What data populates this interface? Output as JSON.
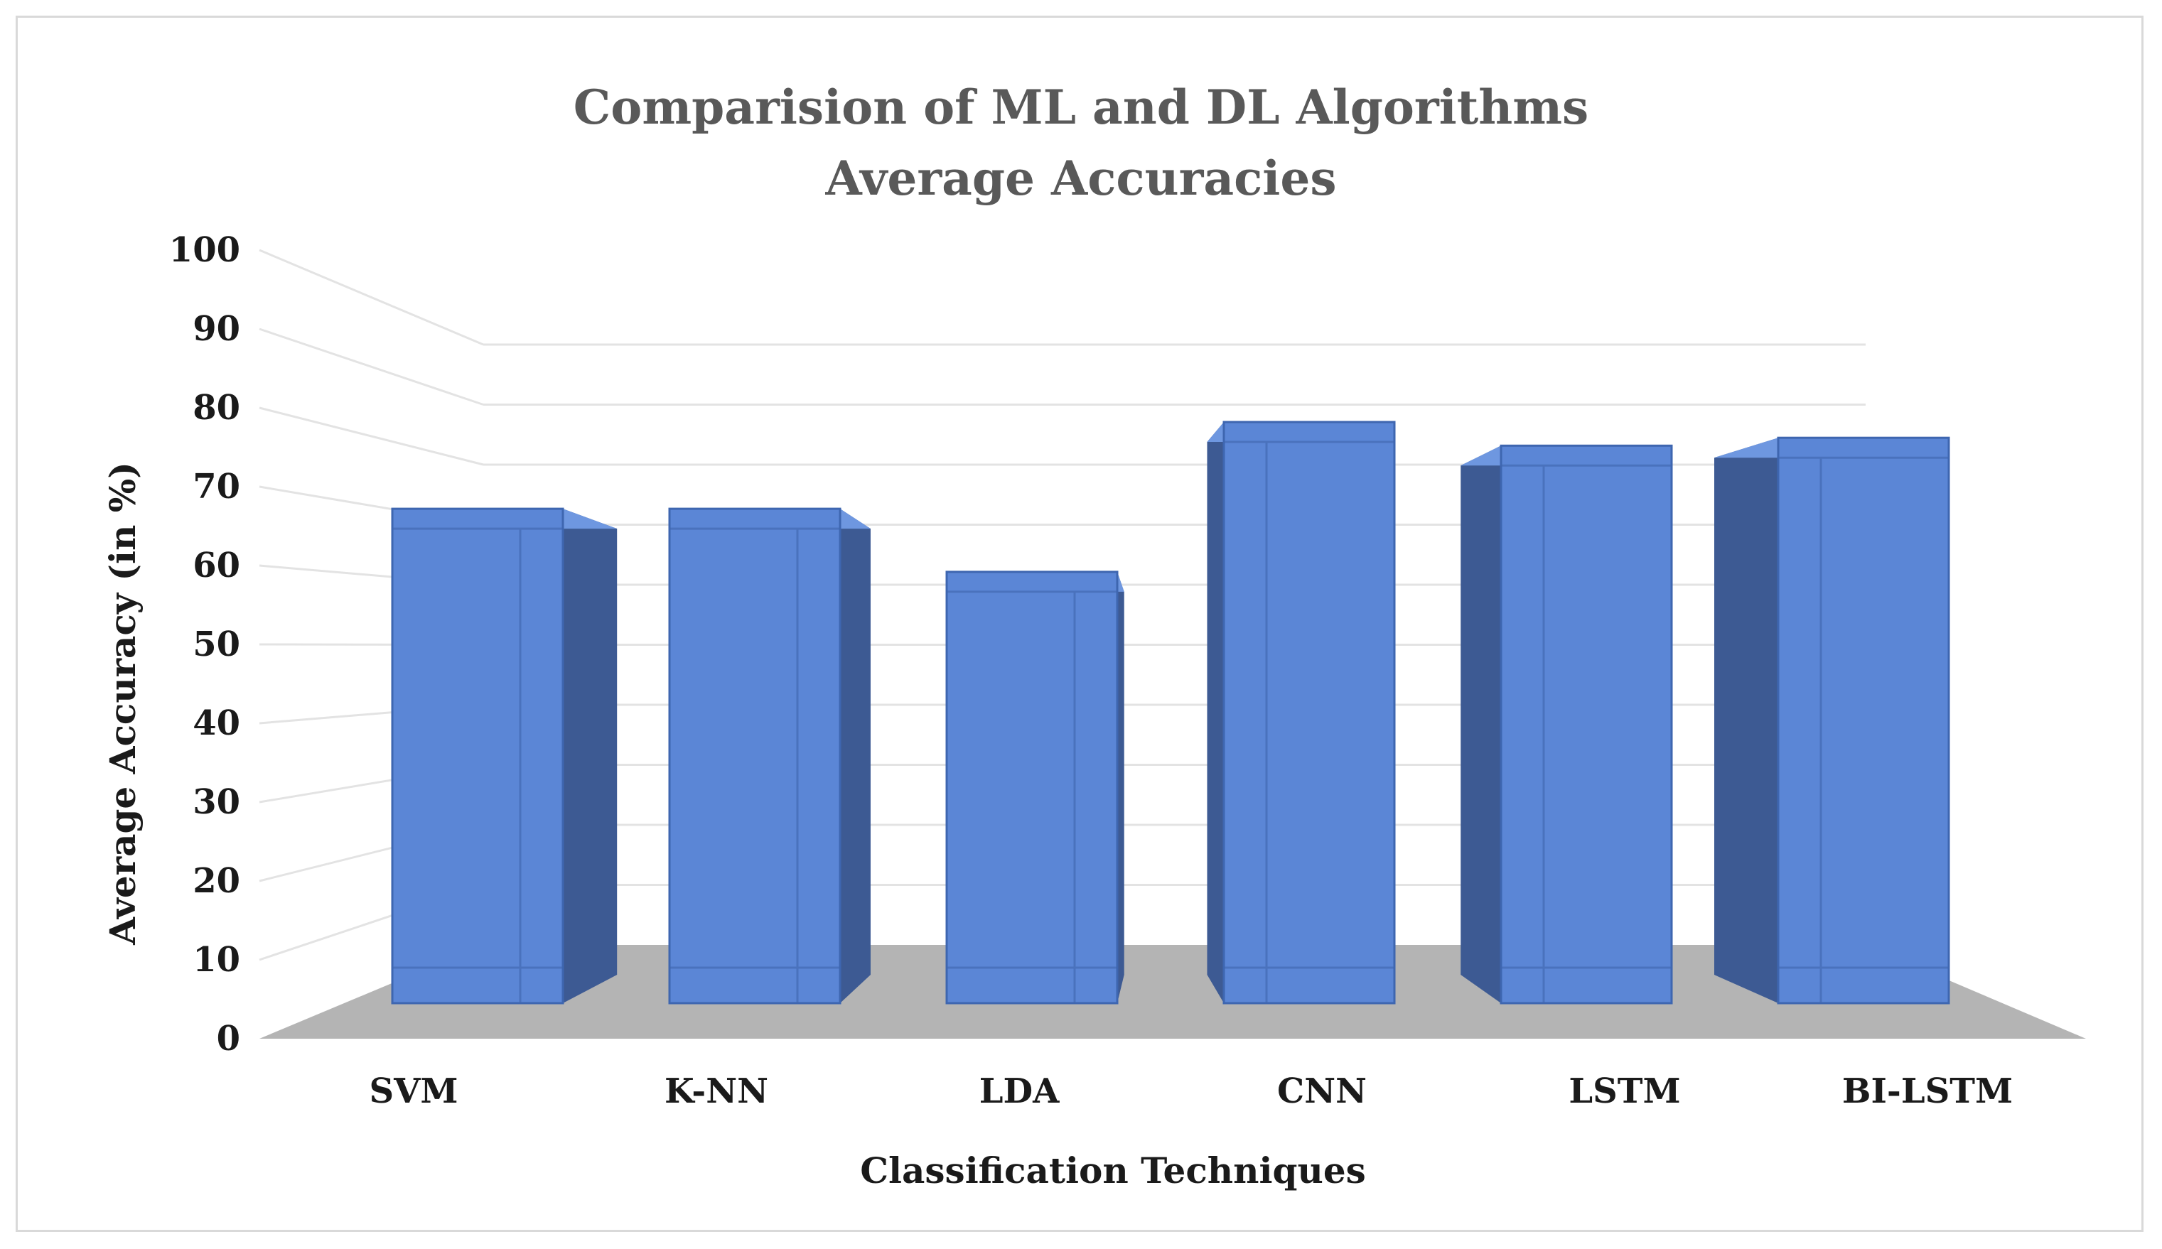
{
  "chart_data": {
    "type": "bar",
    "title": "Comparision of ML and DL Algorithms",
    "subtitle": "Average Accuracies",
    "xlabel": "Classification Techniques",
    "ylabel": "Average Accuracy (in %)",
    "categories": [
      "SVM",
      "K-NN",
      "LDA",
      "CNN",
      "LSTM",
      "BI-LSTM"
    ],
    "values": [
      69,
      69,
      61,
      80,
      77,
      78
    ],
    "ylim": [
      0,
      100
    ],
    "yticks": [
      0,
      10,
      20,
      30,
      40,
      50,
      60,
      70,
      80,
      90,
      100
    ],
    "grid": true,
    "legend": "none",
    "style": "3d-columns",
    "colors": {
      "bar_front": "#5b86d6",
      "bar_side": "#3d5a93",
      "bar_top": "#6e97e0",
      "floor": "#b4b4b4",
      "gridline": "#e3e3e3",
      "title": "#595959"
    }
  }
}
